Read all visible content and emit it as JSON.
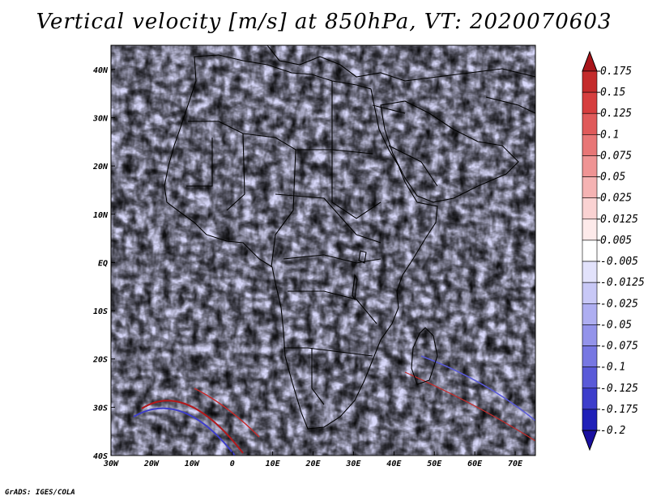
{
  "title": "Vertical velocity [m/s] at 850hPa, VT: 2020070603",
  "footer": "GrADS: IGES/COLA",
  "map": {
    "projection": "latlon",
    "lon_range": [
      -30,
      75
    ],
    "lat_range": [
      -40,
      45
    ],
    "lat_ticks": [
      {
        "value": 40,
        "label": "40N"
      },
      {
        "value": 30,
        "label": "30N"
      },
      {
        "value": 20,
        "label": "20N"
      },
      {
        "value": 10,
        "label": "10N"
      },
      {
        "value": 0,
        "label": "EQ"
      },
      {
        "value": -10,
        "label": "10S"
      },
      {
        "value": -20,
        "label": "20S"
      },
      {
        "value": -30,
        "label": "30S"
      },
      {
        "value": -40,
        "label": "40S"
      }
    ],
    "lon_ticks": [
      {
        "value": -30,
        "label": "30W"
      },
      {
        "value": -20,
        "label": "20W"
      },
      {
        "value": -10,
        "label": "10W"
      },
      {
        "value": 0,
        "label": "0"
      },
      {
        "value": 10,
        "label": "10E"
      },
      {
        "value": 20,
        "label": "20E"
      },
      {
        "value": 30,
        "label": "30E"
      },
      {
        "value": 40,
        "label": "40E"
      },
      {
        "value": 50,
        "label": "50E"
      },
      {
        "value": 60,
        "label": "60E"
      },
      {
        "value": 70,
        "label": "70E"
      }
    ]
  },
  "colorbar": {
    "levels": [
      {
        "label": "0.175",
        "color": "#b2181b"
      },
      {
        "label": "0.15",
        "color": "#c42b2b"
      },
      {
        "label": "0.125",
        "color": "#d63e3e"
      },
      {
        "label": "0.1",
        "color": "#e05a5a"
      },
      {
        "label": "0.075",
        "color": "#e87676"
      },
      {
        "label": "0.05",
        "color": "#ef9494"
      },
      {
        "label": "0.025",
        "color": "#f5b3b3"
      },
      {
        "label": "0.0125",
        "color": "#fad2d2"
      },
      {
        "label": "0.005",
        "color": "#fdeaea"
      },
      {
        "label": "-0.005",
        "color": "#ffffff"
      },
      {
        "label": "-0.0125",
        "color": "#e2e2fb"
      },
      {
        "label": "-0.025",
        "color": "#c8c8f6"
      },
      {
        "label": "-0.05",
        "color": "#aeaef1"
      },
      {
        "label": "-0.075",
        "color": "#9393ea"
      },
      {
        "label": "-0.1",
        "color": "#7777e2"
      },
      {
        "label": "-0.125",
        "color": "#5a5ad8"
      },
      {
        "label": "-0.175",
        "color": "#3d3dcb"
      },
      {
        "label": "-0.2",
        "color": "#2020b8"
      }
    ],
    "top_color": "#a8141a",
    "bottom_color": "#1a10a0"
  }
}
